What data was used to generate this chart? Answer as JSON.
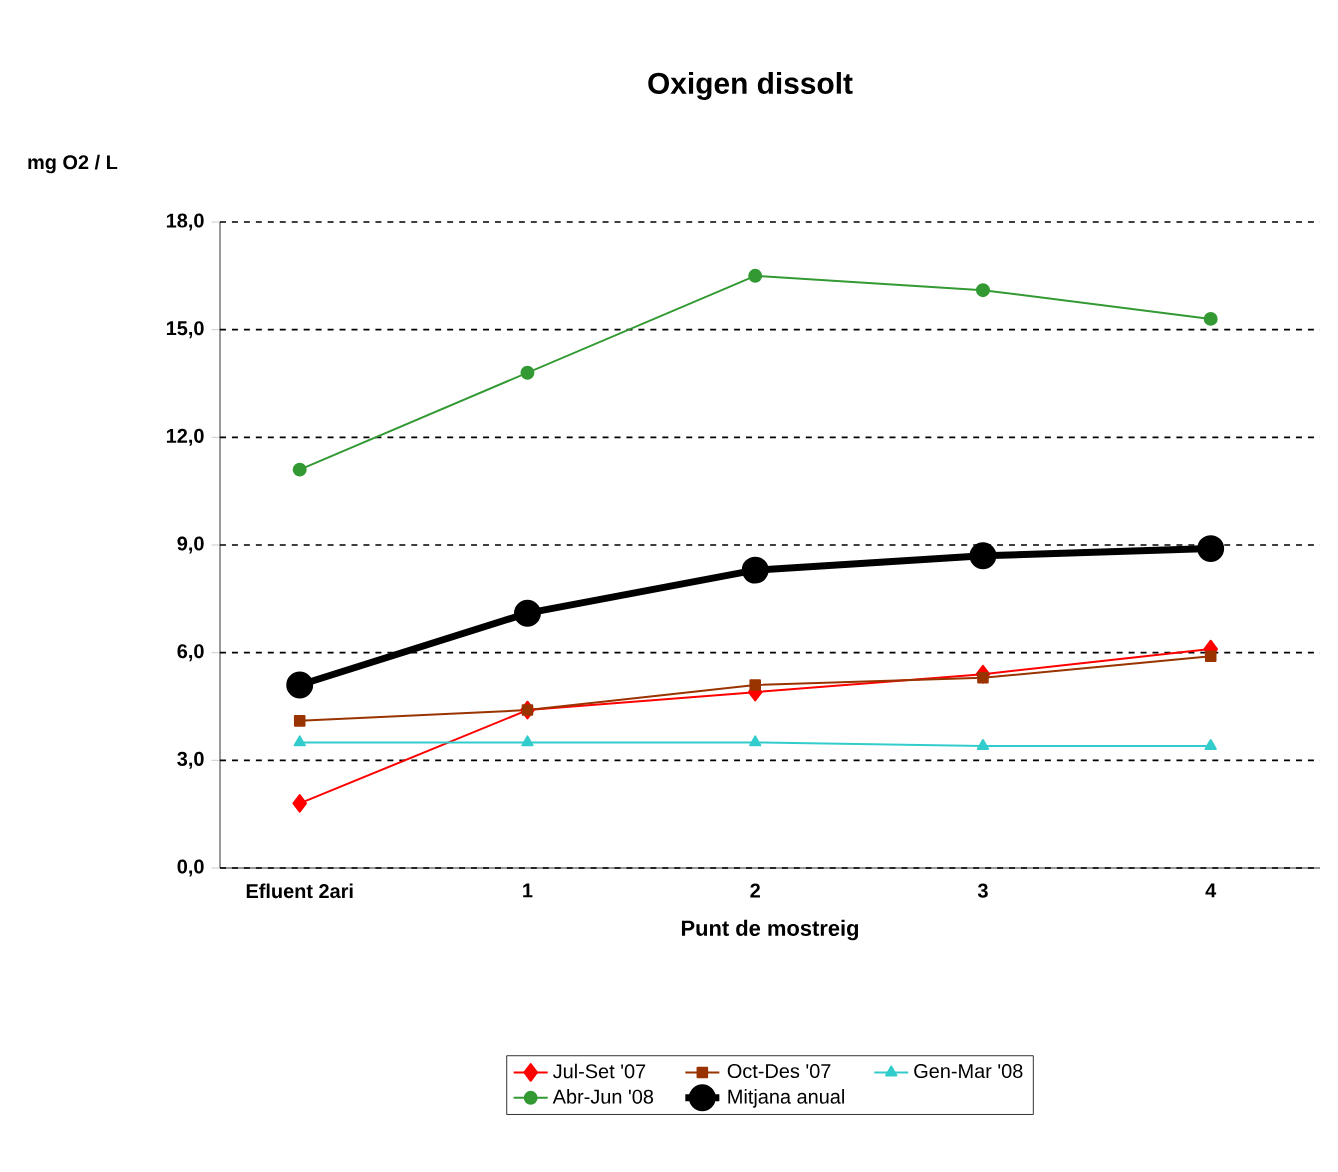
{
  "chart_data": {
    "type": "line",
    "title": "Oxigen dissolt",
    "xlabel": "Punt de mostreig",
    "ylabel": "mg O2 / L",
    "categories": [
      "Efluent 2ari",
      "1",
      "2",
      "3",
      "4"
    ],
    "series": [
      {
        "name": "Jul-Set '07",
        "color": "#ff0000",
        "marker": "diamond",
        "values": [
          1.8,
          4.4,
          4.9,
          5.4,
          6.1
        ]
      },
      {
        "name": "Oct-Des '07",
        "color": "#993300",
        "marker": "square",
        "values": [
          4.1,
          4.4,
          5.1,
          5.3,
          5.9
        ]
      },
      {
        "name": "Gen-Mar '08",
        "color": "#33cccc",
        "marker": "triangle",
        "values": [
          3.5,
          3.5,
          3.5,
          3.4,
          3.4
        ]
      },
      {
        "name": "Abr-Jun '08",
        "color": "#339933",
        "marker": "circle",
        "values": [
          11.1,
          13.8,
          16.5,
          16.1,
          15.3
        ]
      },
      {
        "name": "Mitjana anual",
        "color": "#000000",
        "marker": "circle",
        "values": [
          5.1,
          7.1,
          8.3,
          8.7,
          8.9
        ]
      }
    ],
    "ylim": [
      0,
      18
    ],
    "yticks": [
      {
        "value": 0,
        "label": "0,0"
      },
      {
        "value": 3,
        "label": "3,0"
      },
      {
        "value": 6,
        "label": "6,0"
      },
      {
        "value": 9,
        "label": "9,0"
      },
      {
        "value": 12,
        "label": "12,0"
      },
      {
        "value": 15,
        "label": "15,0"
      },
      {
        "value": 18,
        "label": "18,0"
      }
    ],
    "grid": "y",
    "legend": "bottom",
    "line_style": "solid"
  }
}
